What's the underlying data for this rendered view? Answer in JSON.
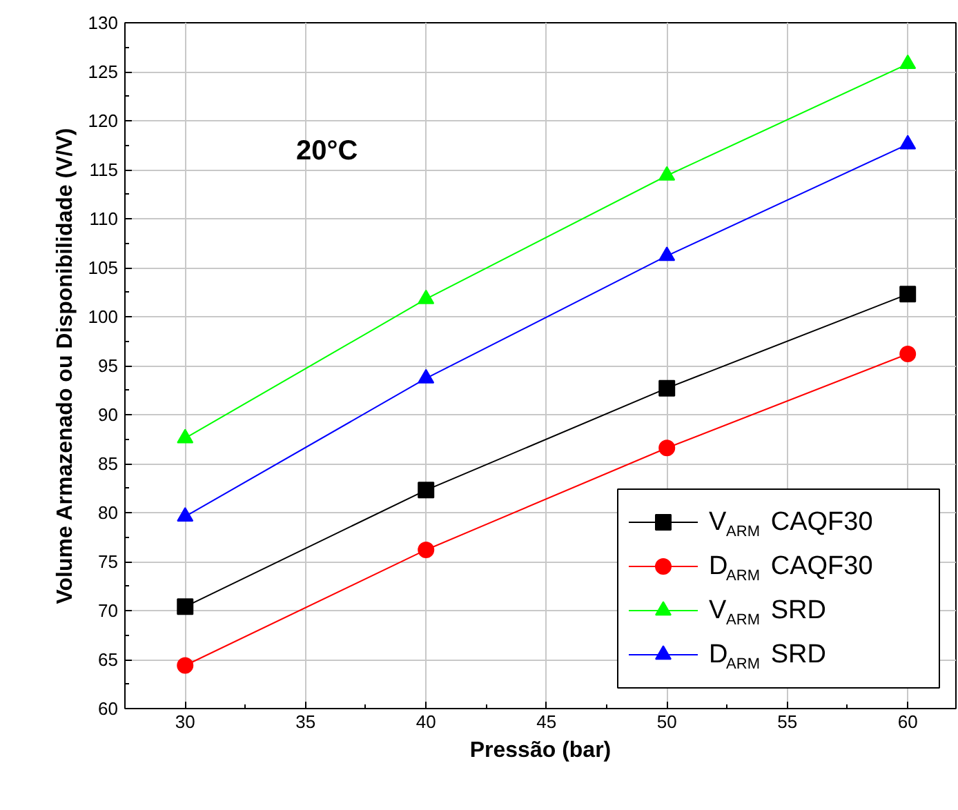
{
  "chart_data": {
    "type": "line",
    "xlabel": "Pressão (bar)",
    "ylabel": "Volume Armazenado ou Disponibilidade (V/V)",
    "annotations": [
      "20°C"
    ],
    "x": [
      30,
      40,
      50,
      60
    ],
    "series": [
      {
        "name": "V$_{ARM}$ CAQF30",
        "color": "#000000",
        "marker": "square",
        "values": [
          70.4,
          82.3,
          92.7,
          102.3
        ]
      },
      {
        "name": "D$_{ARM}$ CAQF30",
        "color": "#ff0000",
        "marker": "circle",
        "values": [
          64.4,
          76.2,
          86.6,
          96.2
        ]
      },
      {
        "name": "V$_{ARM}$ SRD",
        "color": "#00ff00",
        "marker": "triangle",
        "values": [
          87.6,
          101.8,
          114.4,
          125.8
        ]
      },
      {
        "name": "D$_{ARM}$ SRD",
        "color": "#0000ff",
        "marker": "triangle",
        "values": [
          79.6,
          93.7,
          106.2,
          117.6
        ]
      }
    ],
    "xlim": [
      27.5,
      62
    ],
    "ylim": [
      60,
      130
    ],
    "xticks": [
      30,
      35,
      40,
      45,
      50,
      55,
      60
    ],
    "yticks": [
      60,
      65,
      70,
      75,
      80,
      85,
      90,
      95,
      100,
      105,
      110,
      115,
      120,
      125,
      130
    ],
    "grid": true,
    "legend": "bottom right",
    "line_style": "solid"
  }
}
